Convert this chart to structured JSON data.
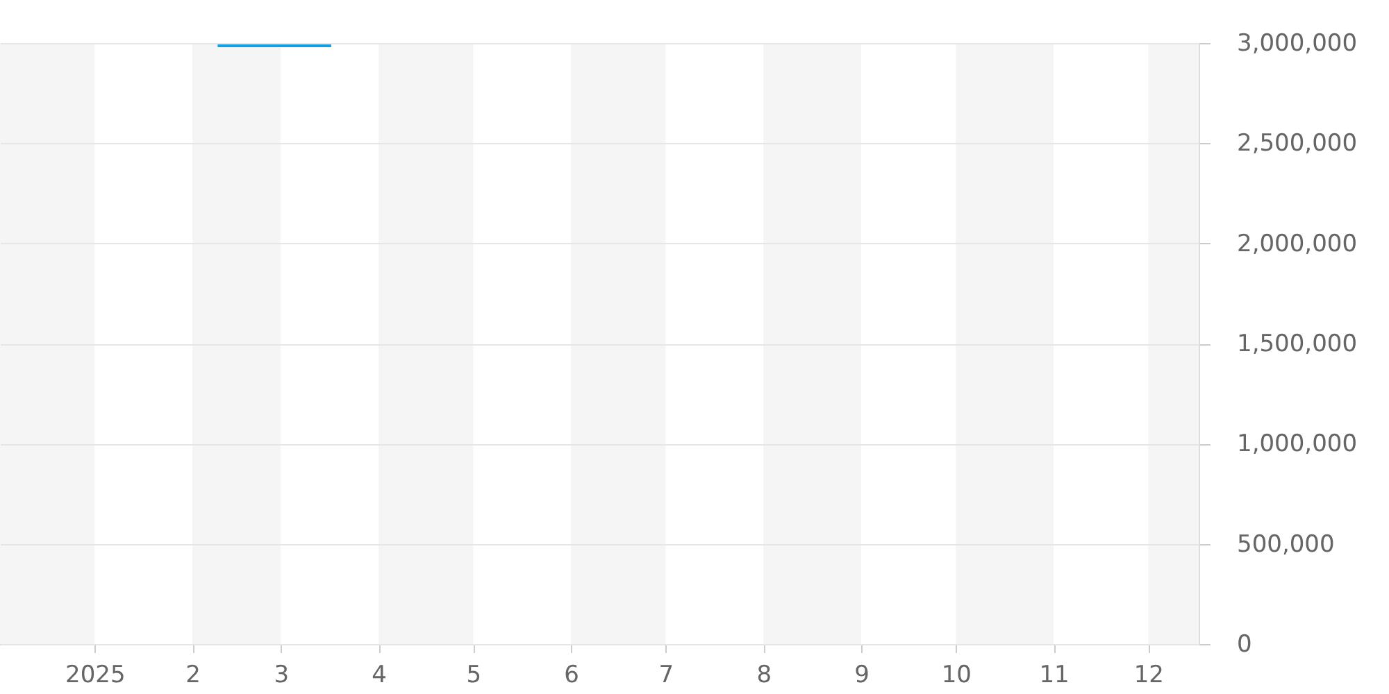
{
  "chart_data": {
    "type": "line",
    "x": [
      "2025-02-09",
      "2025-03-17"
    ],
    "series": [
      {
        "color": "#149fe0",
        "values": [
          2990000,
          2990000
        ]
      }
    ],
    "xlim": [
      "2024-12-02",
      "2025-12-17"
    ],
    "xticks": [
      {
        "value": "2025-01-01",
        "label": "2025"
      },
      {
        "value": "2025-02-01",
        "label": "2"
      },
      {
        "value": "2025-03-01",
        "label": "3"
      },
      {
        "value": "2025-04-01",
        "label": "4"
      },
      {
        "value": "2025-05-01",
        "label": "5"
      },
      {
        "value": "2025-06-01",
        "label": "6"
      },
      {
        "value": "2025-07-01",
        "label": "7"
      },
      {
        "value": "2025-08-01",
        "label": "8"
      },
      {
        "value": "2025-09-01",
        "label": "9"
      },
      {
        "value": "2025-10-01",
        "label": "10"
      },
      {
        "value": "2025-11-01",
        "label": "11"
      },
      {
        "value": "2025-12-01",
        "label": "12"
      }
    ],
    "ylim": [
      0,
      3000000
    ],
    "yticks": [
      0,
      {
        "value": 500000,
        "label": "500,000"
      },
      {
        "value": 1000000,
        "label": "1,000,000"
      },
      {
        "value": 1500000,
        "label": "1,500,000"
      },
      {
        "value": 2000000,
        "label": "2,000,000"
      },
      {
        "value": 2500000,
        "label": "2,500,000"
      },
      {
        "value": 3000000,
        "label": "3,000,000"
      }
    ],
    "bands": [
      {
        "axis": "x",
        "from": "2024-12-02",
        "to": "2025-01-01",
        "color": "#f5f5f5"
      },
      {
        "axis": "x",
        "from": "2025-02-01",
        "to": "2025-03-01",
        "color": "#f5f5f5"
      },
      {
        "axis": "x",
        "from": "2025-04-01",
        "to": "2025-05-01",
        "color": "#f5f5f5"
      },
      {
        "axis": "x",
        "from": "2025-06-01",
        "to": "2025-07-01",
        "color": "#f5f5f5"
      },
      {
        "axis": "x",
        "from": "2025-08-01",
        "to": "2025-09-01",
        "color": "#f5f5f5"
      },
      {
        "axis": "x",
        "from": "2025-10-01",
        "to": "2025-11-01",
        "color": "#f5f5f5"
      },
      {
        "axis": "x",
        "from": "2025-12-01",
        "to": "2025-12-17",
        "color": "#f5f5f5"
      }
    ],
    "grid": "y",
    "marker": "none",
    "line_style": "solid"
  }
}
